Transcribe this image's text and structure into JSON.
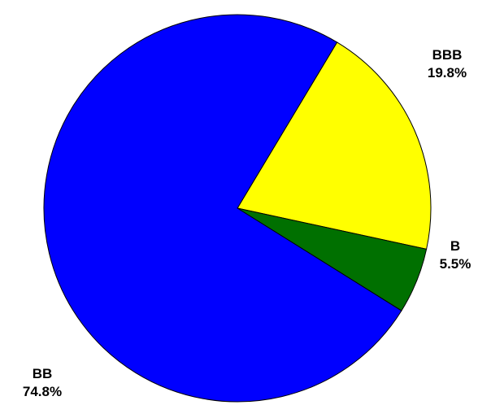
{
  "chart_data": {
    "type": "pie",
    "title": "",
    "slices": [
      {
        "label": "BBB",
        "value": 19.8,
        "value_label": "19.8%",
        "color": "#FFFF00"
      },
      {
        "label": "B",
        "value": 5.5,
        "value_label": "5.5%",
        "color": "#007000"
      },
      {
        "label": "BB",
        "value": 74.8,
        "value_label": "74.8%",
        "color": "#0000FF"
      }
    ],
    "legend": "none",
    "outline_color": "#000000"
  }
}
